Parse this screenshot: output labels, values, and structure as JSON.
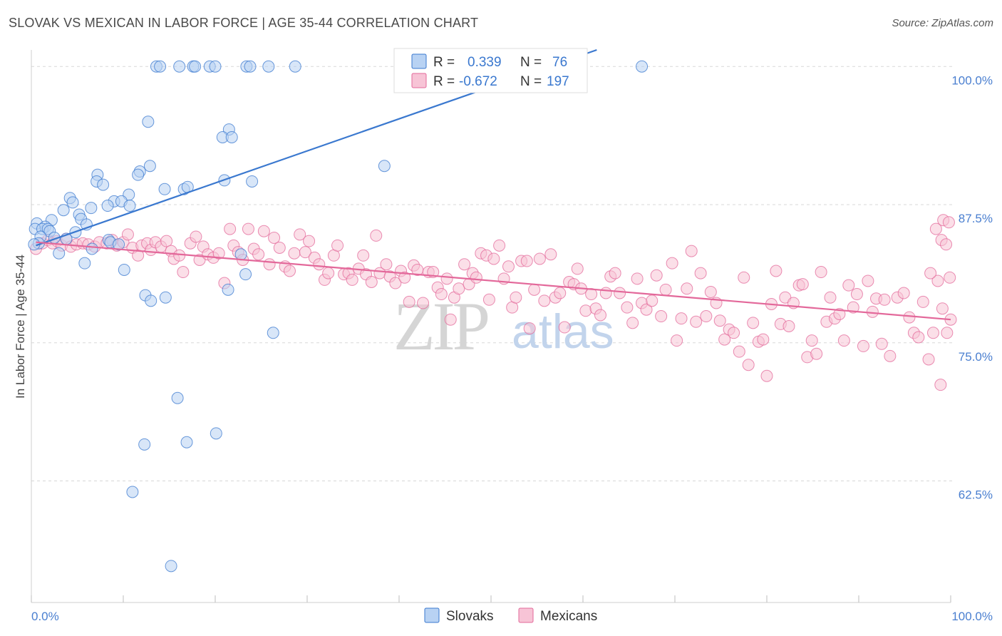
{
  "title": "SLOVAK VS MEXICAN IN LABOR FORCE | AGE 35-44 CORRELATION CHART",
  "source": "Source: ZipAtlas.com",
  "colors": {
    "slovaks": "#3a78cf",
    "slovaks_fill": "#b8d2f3",
    "mexicans": "#e3689a",
    "mexicans_fill": "#f7c4d6",
    "grid": "#d8d8d8"
  },
  "legend": {
    "r_label": "R =",
    "n_label": "N =",
    "slovaks_r": "0.339",
    "slovaks_n": "76",
    "mexicans_r": "-0.672",
    "mexicans_n": "197"
  },
  "watermark": {
    "zip": "ZIP",
    "atlas": "atlas"
  },
  "chart_data": {
    "type": "scatter",
    "title": "SLOVAK VS MEXICAN IN LABOR FORCE | AGE 35-44 CORRELATION CHART",
    "xlabel": "",
    "ylabel": "In Labor Force | Age 35-44",
    "xlim": [
      0,
      100
    ],
    "ylim": [
      51.5,
      101.5
    ],
    "x_tick_labels": [
      "0.0%",
      "100.0%"
    ],
    "y_ticks": [
      {
        "value": 100.0,
        "label": "100.0%"
      },
      {
        "value": 87.5,
        "label": "87.5%"
      },
      {
        "value": 75.0,
        "label": "75.0%"
      },
      {
        "value": 62.5,
        "label": "62.5%"
      }
    ],
    "grid": true,
    "legend_position": "top-center",
    "bottom_legend": [
      "Slovaks",
      "Mexicans"
    ],
    "series": [
      {
        "name": "Slovaks",
        "color": "#3a78cf",
        "trend": {
          "x": [
            0.5,
            61.5
          ],
          "y": [
            83.8,
            101.5
          ]
        },
        "points": [
          [
            13.6,
            100
          ],
          [
            14.0,
            100
          ],
          [
            16.1,
            100
          ],
          [
            17.6,
            100
          ],
          [
            17.8,
            100
          ],
          [
            19.4,
            100
          ],
          [
            20.0,
            100
          ],
          [
            23.4,
            100
          ],
          [
            23.8,
            100
          ],
          [
            25.8,
            100
          ],
          [
            28.7,
            100
          ],
          [
            66.4,
            100
          ],
          [
            12.7,
            95.0
          ],
          [
            21.5,
            94.3
          ],
          [
            20.8,
            93.6
          ],
          [
            21.8,
            93.6
          ],
          [
            12.9,
            91.0
          ],
          [
            38.4,
            91.0
          ],
          [
            11.8,
            90.5
          ],
          [
            7.2,
            90.2
          ],
          [
            11.6,
            90.2
          ],
          [
            7.1,
            89.6
          ],
          [
            7.8,
            89.3
          ],
          [
            21.0,
            89.7
          ],
          [
            24.0,
            89.6
          ],
          [
            14.5,
            88.9
          ],
          [
            16.6,
            88.9
          ],
          [
            17.0,
            89.1
          ],
          [
            4.2,
            88.1
          ],
          [
            10.6,
            88.4
          ],
          [
            4.5,
            87.7
          ],
          [
            9.0,
            87.8
          ],
          [
            9.8,
            87.8
          ],
          [
            8.3,
            87.4
          ],
          [
            10.7,
            87.4
          ],
          [
            3.5,
            87.0
          ],
          [
            6.5,
            87.2
          ],
          [
            5.2,
            86.6
          ],
          [
            5.4,
            86.2
          ],
          [
            2.2,
            86.1
          ],
          [
            0.6,
            85.8
          ],
          [
            1.5,
            85.5
          ],
          [
            0.4,
            85.3
          ],
          [
            1.2,
            85.3
          ],
          [
            1.8,
            85.3
          ],
          [
            6.0,
            85.7
          ],
          [
            2.0,
            85.1
          ],
          [
            4.8,
            85.0
          ],
          [
            1.0,
            84.6
          ],
          [
            2.5,
            84.5
          ],
          [
            3.8,
            84.4
          ],
          [
            8.4,
            84.3
          ],
          [
            8.6,
            84.1
          ],
          [
            0.8,
            84.0
          ],
          [
            0.3,
            83.9
          ],
          [
            9.5,
            83.9
          ],
          [
            6.6,
            83.5
          ],
          [
            3.0,
            83.1
          ],
          [
            5.8,
            82.2
          ],
          [
            10.1,
            81.6
          ],
          [
            23.3,
            81.2
          ],
          [
            22.8,
            83.0
          ],
          [
            12.4,
            79.3
          ],
          [
            14.6,
            79.1
          ],
          [
            13.0,
            78.8
          ],
          [
            21.4,
            79.8
          ],
          [
            26.3,
            75.9
          ],
          [
            15.9,
            70.0
          ],
          [
            12.3,
            65.8
          ],
          [
            16.9,
            66.0
          ],
          [
            20.1,
            66.8
          ],
          [
            11.0,
            61.5
          ],
          [
            15.2,
            54.8
          ]
        ]
      },
      {
        "name": "Mexicans",
        "color": "#e3689a",
        "trend": {
          "x": [
            0.5,
            100
          ],
          "y": [
            84.1,
            77.1
          ]
        },
        "points": [
          [
            0.5,
            83.5
          ],
          [
            1.2,
            84.0
          ],
          [
            1.8,
            84.3
          ],
          [
            2.3,
            84.0
          ],
          [
            2.8,
            84.2
          ],
          [
            3.3,
            83.8
          ],
          [
            3.8,
            84.4
          ],
          [
            4.3,
            83.7
          ],
          [
            4.9,
            83.9
          ],
          [
            5.6,
            84.0
          ],
          [
            6.2,
            83.9
          ],
          [
            6.9,
            83.7
          ],
          [
            7.4,
            84.1
          ],
          [
            8.2,
            84.0
          ],
          [
            8.8,
            84.3
          ],
          [
            9.3,
            83.8
          ],
          [
            10.0,
            84.1
          ],
          [
            10.5,
            84.8
          ],
          [
            11.0,
            83.6
          ],
          [
            11.6,
            82.9
          ],
          [
            12.0,
            83.8
          ],
          [
            12.6,
            84.0
          ],
          [
            13.0,
            83.4
          ],
          [
            13.5,
            84.1
          ],
          [
            14.1,
            83.7
          ],
          [
            14.7,
            84.2
          ],
          [
            15.2,
            83.3
          ],
          [
            15.5,
            82.6
          ],
          [
            16.1,
            82.9
          ],
          [
            16.5,
            81.4
          ],
          [
            17.3,
            84.0
          ],
          [
            17.9,
            84.6
          ],
          [
            18.3,
            82.5
          ],
          [
            18.7,
            83.7
          ],
          [
            19.2,
            83.0
          ],
          [
            19.8,
            82.7
          ],
          [
            20.4,
            83.1
          ],
          [
            21.0,
            80.4
          ],
          [
            21.6,
            85.3
          ],
          [
            22.0,
            83.8
          ],
          [
            22.5,
            83.2
          ],
          [
            23.0,
            82.5
          ],
          [
            23.6,
            85.3
          ],
          [
            24.2,
            83.5
          ],
          [
            24.7,
            83.0
          ],
          [
            25.3,
            85.1
          ],
          [
            25.9,
            82.1
          ],
          [
            26.4,
            84.5
          ],
          [
            27.0,
            83.6
          ],
          [
            27.6,
            81.9
          ],
          [
            28.1,
            81.5
          ],
          [
            28.6,
            83.1
          ],
          [
            29.2,
            84.8
          ],
          [
            29.8,
            83.2
          ],
          [
            30.2,
            84.2
          ],
          [
            30.8,
            82.7
          ],
          [
            31.3,
            82.1
          ],
          [
            31.9,
            80.7
          ],
          [
            32.3,
            81.3
          ],
          [
            32.9,
            82.9
          ],
          [
            33.3,
            83.8
          ],
          [
            34.0,
            81.2
          ],
          [
            34.5,
            81.3
          ],
          [
            34.9,
            80.7
          ],
          [
            35.6,
            81.7
          ],
          [
            36.1,
            82.9
          ],
          [
            36.4,
            81.2
          ],
          [
            37.0,
            80.5
          ],
          [
            37.5,
            84.7
          ],
          [
            37.9,
            81.3
          ],
          [
            38.6,
            82.1
          ],
          [
            39.0,
            81.0
          ],
          [
            39.6,
            80.4
          ],
          [
            40.2,
            81.5
          ],
          [
            40.6,
            80.9
          ],
          [
            41.1,
            78.7
          ],
          [
            41.6,
            82.0
          ],
          [
            42.0,
            81.6
          ],
          [
            42.6,
            78.6
          ],
          [
            43.2,
            81.4
          ],
          [
            43.7,
            81.4
          ],
          [
            44.2,
            80.0
          ],
          [
            44.6,
            79.4
          ],
          [
            45.2,
            80.8
          ],
          [
            45.6,
            77.1
          ],
          [
            46.0,
            79.1
          ],
          [
            46.5,
            79.9
          ],
          [
            47.1,
            82.1
          ],
          [
            47.6,
            80.3
          ],
          [
            48.0,
            81.3
          ],
          [
            48.4,
            80.9
          ],
          [
            48.9,
            83.1
          ],
          [
            49.5,
            82.9
          ],
          [
            49.8,
            78.9
          ],
          [
            50.3,
            82.6
          ],
          [
            50.9,
            83.8
          ],
          [
            51.4,
            80.8
          ],
          [
            51.9,
            81.9
          ],
          [
            52.3,
            78.2
          ],
          [
            52.7,
            79.1
          ],
          [
            53.3,
            82.4
          ],
          [
            53.9,
            82.4
          ],
          [
            54.2,
            76.3
          ],
          [
            54.7,
            79.8
          ],
          [
            55.3,
            82.6
          ],
          [
            55.8,
            78.8
          ],
          [
            56.5,
            83.0
          ],
          [
            57.0,
            79.1
          ],
          [
            57.5,
            79.5
          ],
          [
            58.0,
            76.4
          ],
          [
            58.5,
            80.5
          ],
          [
            59.0,
            80.3
          ],
          [
            59.4,
            81.7
          ],
          [
            59.8,
            79.9
          ],
          [
            60.3,
            77.9
          ],
          [
            60.9,
            79.4
          ],
          [
            61.4,
            78.1
          ],
          [
            61.9,
            77.5
          ],
          [
            62.5,
            79.5
          ],
          [
            63.0,
            81.0
          ],
          [
            63.5,
            81.3
          ],
          [
            64.0,
            79.5
          ],
          [
            64.8,
            78.2
          ],
          [
            65.4,
            76.8
          ],
          [
            65.9,
            80.8
          ],
          [
            66.4,
            78.6
          ],
          [
            66.9,
            78.0
          ],
          [
            67.5,
            78.8
          ],
          [
            68.0,
            81.1
          ],
          [
            68.5,
            77.4
          ],
          [
            69.0,
            79.8
          ],
          [
            69.7,
            82.2
          ],
          [
            70.2,
            75.2
          ],
          [
            70.7,
            77.2
          ],
          [
            71.3,
            79.9
          ],
          [
            71.8,
            83.3
          ],
          [
            72.3,
            76.9
          ],
          [
            72.8,
            81.3
          ],
          [
            73.4,
            77.4
          ],
          [
            73.9,
            79.6
          ],
          [
            74.5,
            78.6
          ],
          [
            74.9,
            77.0
          ],
          [
            75.4,
            75.3
          ],
          [
            75.9,
            76.2
          ],
          [
            76.4,
            75.9
          ],
          [
            77.0,
            74.2
          ],
          [
            77.5,
            80.9
          ],
          [
            78.0,
            73.0
          ],
          [
            78.5,
            76.8
          ],
          [
            79.1,
            75.1
          ],
          [
            79.6,
            75.3
          ],
          [
            80.0,
            72.0
          ],
          [
            80.5,
            78.5
          ],
          [
            81.0,
            81.5
          ],
          [
            81.5,
            76.7
          ],
          [
            82.0,
            79.1
          ],
          [
            82.4,
            76.5
          ],
          [
            82.9,
            78.6
          ],
          [
            83.5,
            80.2
          ],
          [
            83.9,
            80.3
          ],
          [
            84.4,
            73.7
          ],
          [
            84.9,
            75.2
          ],
          [
            85.4,
            74.0
          ],
          [
            85.9,
            81.4
          ],
          [
            86.5,
            76.9
          ],
          [
            86.9,
            79.1
          ],
          [
            87.4,
            77.2
          ],
          [
            87.9,
            77.6
          ],
          [
            88.4,
            75.2
          ],
          [
            88.9,
            80.2
          ],
          [
            89.4,
            78.2
          ],
          [
            89.8,
            79.4
          ],
          [
            90.5,
            74.7
          ],
          [
            91.0,
            80.6
          ],
          [
            91.5,
            77.8
          ],
          [
            91.9,
            79.0
          ],
          [
            92.5,
            74.9
          ],
          [
            92.8,
            78.9
          ],
          [
            93.4,
            73.8
          ],
          [
            94.2,
            79.1
          ],
          [
            94.9,
            79.5
          ],
          [
            95.5,
            77.3
          ],
          [
            96.0,
            75.9
          ],
          [
            96.5,
            75.5
          ],
          [
            97.0,
            78.7
          ],
          [
            97.6,
            73.5
          ],
          [
            98.1,
            75.9
          ],
          [
            98.6,
            80.6
          ],
          [
            99.1,
            78.1
          ],
          [
            99.6,
            75.9
          ],
          [
            100.0,
            77.1
          ],
          [
            97.8,
            81.3
          ],
          [
            98.4,
            85.3
          ],
          [
            99.0,
            84.3
          ],
          [
            99.5,
            83.9
          ],
          [
            99.2,
            86.1
          ],
          [
            99.8,
            85.9
          ],
          [
            98.9,
            71.2
          ],
          [
            99.9,
            80.9
          ]
        ]
      }
    ]
  }
}
